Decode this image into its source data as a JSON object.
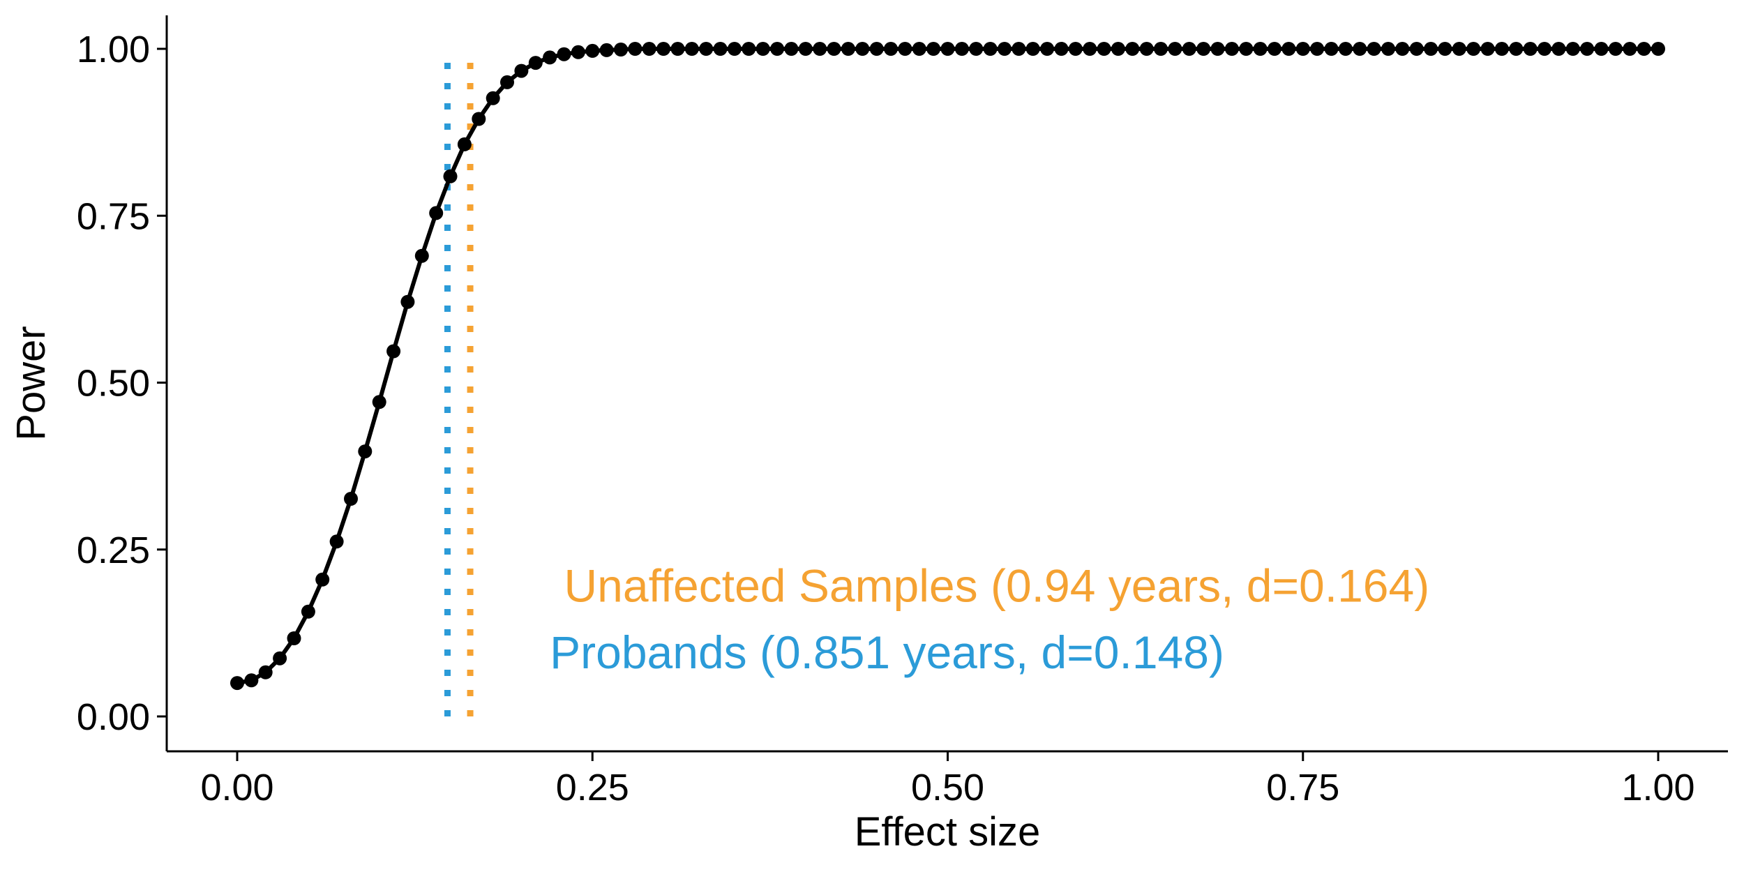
{
  "chart_data": {
    "type": "line",
    "xlabel": "Effect size",
    "ylabel": "Power",
    "xlim": [
      -0.05,
      1.05
    ],
    "ylim": [
      -0.05,
      1.05
    ],
    "grid": false,
    "x_ticks": [
      0.0,
      0.25,
      0.5,
      0.75,
      1.0
    ],
    "x_tick_labels": [
      "0.00",
      "0.25",
      "0.50",
      "0.75",
      "1.00"
    ],
    "y_ticks": [
      0.0,
      0.25,
      0.5,
      0.75,
      1.0
    ],
    "y_tick_labels": [
      "0.00",
      "0.25",
      "0.50",
      "0.75",
      "1.00"
    ],
    "series": [
      {
        "color": "#000000",
        "x": [
          0.0,
          0.01,
          0.02,
          0.03,
          0.04,
          0.05,
          0.06,
          0.07,
          0.08,
          0.09,
          0.1,
          0.11,
          0.12,
          0.13,
          0.14,
          0.15,
          0.16,
          0.17,
          0.18,
          0.19,
          0.2,
          0.21,
          0.22,
          0.23,
          0.24,
          0.25,
          0.26,
          0.27,
          0.28,
          0.29,
          0.3,
          0.31,
          0.32,
          0.33,
          0.34,
          0.35,
          0.36,
          0.37,
          0.38,
          0.39,
          0.4,
          0.41,
          0.42,
          0.43,
          0.44,
          0.45,
          0.46,
          0.47,
          0.48,
          0.49,
          0.5,
          0.51,
          0.52,
          0.53,
          0.54,
          0.55,
          0.56,
          0.57,
          0.58,
          0.59,
          0.6,
          0.61,
          0.62,
          0.63,
          0.64,
          0.65,
          0.66,
          0.67,
          0.68,
          0.69,
          0.7,
          0.71,
          0.72,
          0.73,
          0.74,
          0.75,
          0.76,
          0.77,
          0.78,
          0.79,
          0.8,
          0.81,
          0.82,
          0.83,
          0.84,
          0.85,
          0.86,
          0.87,
          0.88,
          0.89,
          0.9,
          0.91,
          0.92,
          0.93,
          0.94,
          0.95,
          0.96,
          0.97,
          0.98,
          0.99,
          1.0
        ],
        "y": [
          0.05,
          0.054,
          0.066,
          0.087,
          0.117,
          0.157,
          0.205,
          0.262,
          0.326,
          0.397,
          0.471,
          0.547,
          0.621,
          0.69,
          0.754,
          0.809,
          0.857,
          0.895,
          0.926,
          0.95,
          0.967,
          0.979,
          0.987,
          0.992,
          0.995,
          0.997,
          0.998,
          0.999,
          1.0,
          1.0,
          1.0,
          1.0,
          1.0,
          1.0,
          1.0,
          1.0,
          1.0,
          1.0,
          1.0,
          1.0,
          1.0,
          1.0,
          1.0,
          1.0,
          1.0,
          1.0,
          1.0,
          1.0,
          1.0,
          1.0,
          1.0,
          1.0,
          1.0,
          1.0,
          1.0,
          1.0,
          1.0,
          1.0,
          1.0,
          1.0,
          1.0,
          1.0,
          1.0,
          1.0,
          1.0,
          1.0,
          1.0,
          1.0,
          1.0,
          1.0,
          1.0,
          1.0,
          1.0,
          1.0,
          1.0,
          1.0,
          1.0,
          1.0,
          1.0,
          1.0,
          1.0,
          1.0,
          1.0,
          1.0,
          1.0,
          1.0,
          1.0,
          1.0,
          1.0,
          1.0,
          1.0,
          1.0,
          1.0,
          1.0,
          1.0,
          1.0,
          1.0,
          1.0,
          1.0,
          1.0,
          1.0
        ]
      }
    ],
    "reference_lines": [
      {
        "x": 0.148,
        "color": "#2b9bd8",
        "style": "dotted",
        "y_top": 0.98
      },
      {
        "x": 0.164,
        "color": "#f5a232",
        "style": "dotted",
        "y_top": 0.98
      }
    ],
    "annotations": [
      {
        "text": "Unaffected Samples (0.94 years, d=0.164)",
        "color": "#f5a232",
        "x": 0.23,
        "y": 0.195
      },
      {
        "text": "Probands (0.851 years, d=0.148)",
        "color": "#2b9bd8",
        "x": 0.22,
        "y": 0.095
      }
    ]
  }
}
